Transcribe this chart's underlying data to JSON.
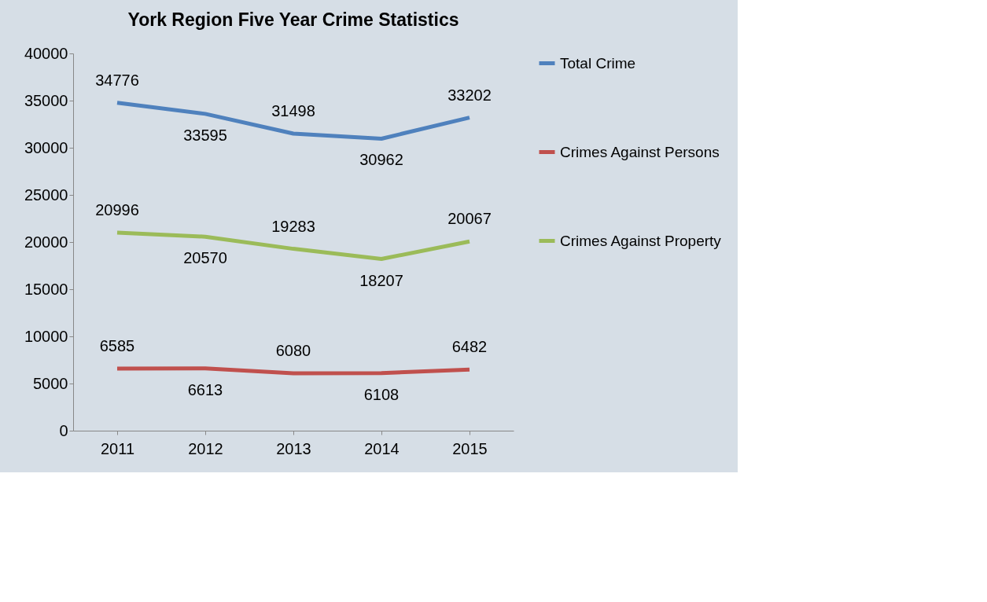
{
  "chart_data": {
    "type": "line",
    "title": "York Region Five Year Crime Statistics",
    "categories": [
      "2011",
      "2012",
      "2013",
      "2014",
      "2015"
    ],
    "series": [
      {
        "name": "Total Crime",
        "color": "#4f81bd",
        "values": [
          34776,
          33595,
          31498,
          30962,
          33202
        ]
      },
      {
        "name": "Crimes Against Persons",
        "color": "#c0504d",
        "values": [
          6585,
          6613,
          6080,
          6108,
          6482
        ]
      },
      {
        "name": "Crimes Against Property",
        "color": "#9bbb59",
        "values": [
          20996,
          20570,
          19283,
          18207,
          20067
        ]
      }
    ],
    "ylim": [
      0,
      40000
    ],
    "yticks": [
      0,
      5000,
      10000,
      15000,
      20000,
      25000,
      30000,
      35000,
      40000
    ],
    "data_labels": true,
    "legend": "right",
    "grid": false,
    "marker": "none",
    "line_style": "solid"
  }
}
